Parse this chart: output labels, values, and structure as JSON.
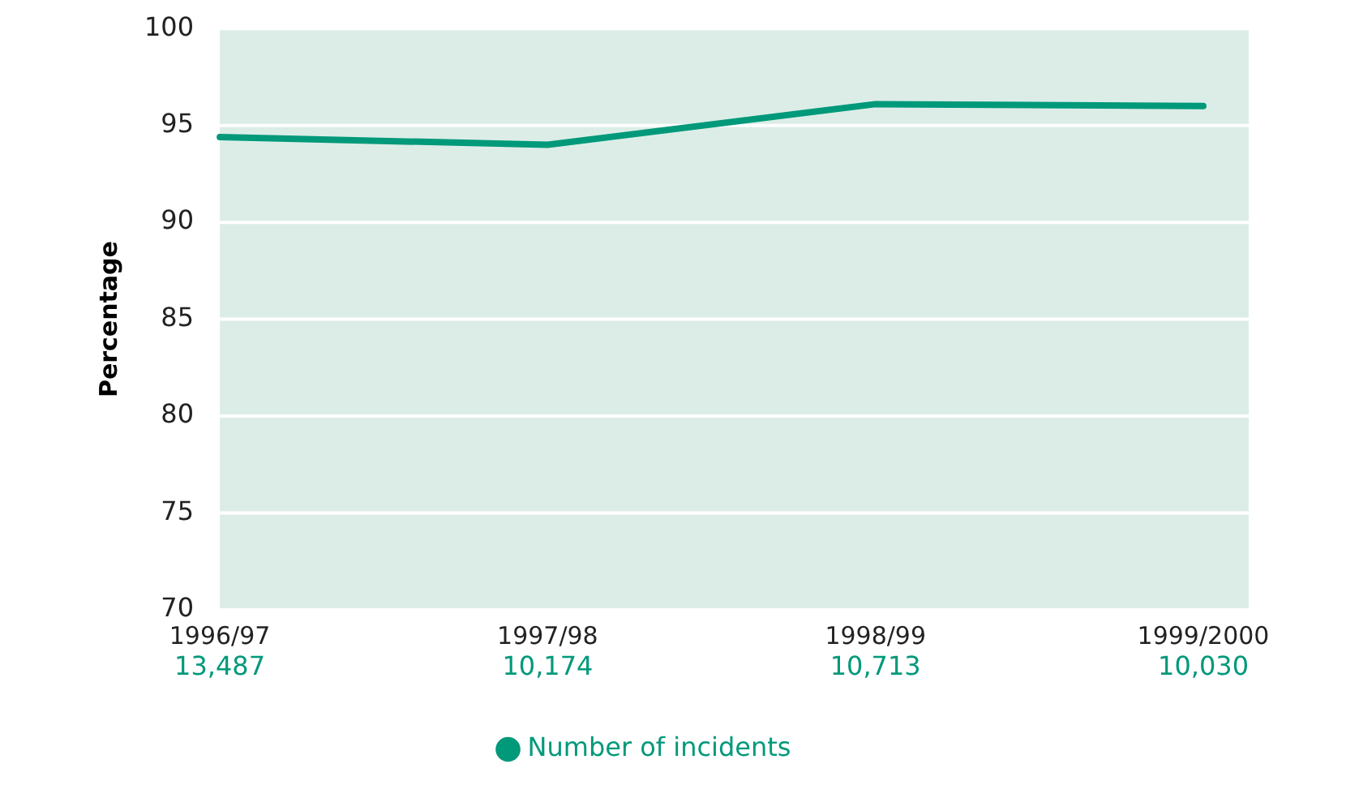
{
  "chart_data": {
    "type": "line",
    "ylabel": "Percentage",
    "categories": [
      "1996/97",
      "1997/98",
      "1998/99",
      "1999/2000"
    ],
    "series": [
      {
        "name": "Number of incidents",
        "color": "#00997a",
        "values": [
          94.4,
          94.0,
          96.1,
          96.0
        ]
      }
    ],
    "ylim": [
      70,
      100
    ],
    "yticks": [
      70,
      75,
      80,
      85,
      90,
      95,
      100
    ],
    "grid": "y",
    "legend": "bottom",
    "marker": "none",
    "line_style": "solid",
    "annotations": [
      "13,487",
      "10,174",
      "10,713",
      "10,030"
    ]
  }
}
